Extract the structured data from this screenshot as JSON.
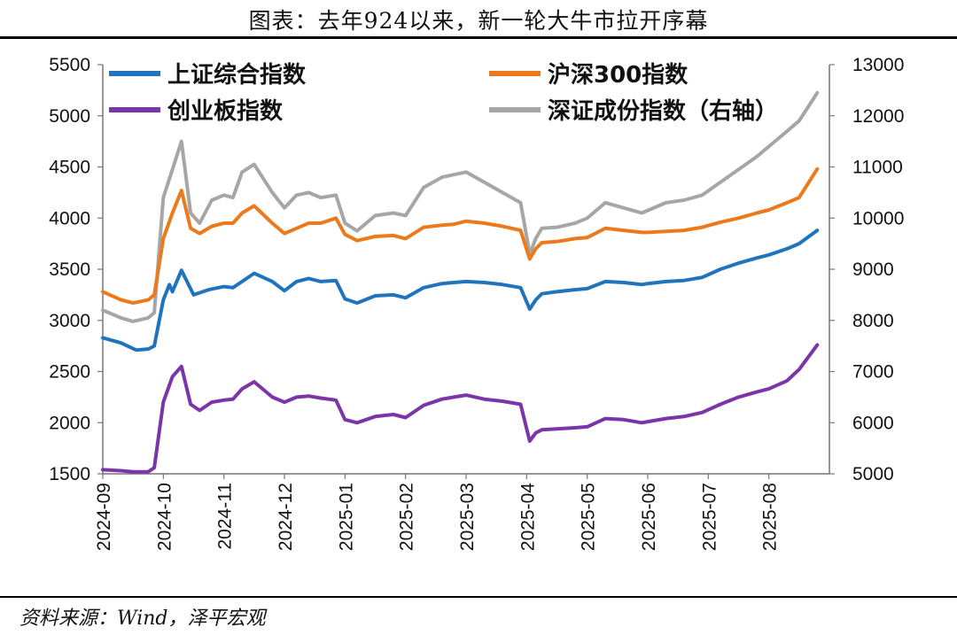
{
  "title": "图表：去年924以来，新一轮大牛市拉开序幕",
  "source": "资料来源：Wind，泽平宏观",
  "colors": {
    "shcomp": "#1f74bd",
    "csi300": "#ec7a1c",
    "chinext": "#7b35a9",
    "szcomp": "#a6a6a6"
  },
  "chart_data": {
    "type": "line",
    "x_labels": [
      "2024-09",
      "2024-10",
      "2024-11",
      "2024-12",
      "2025-01",
      "2025-02",
      "2025-03",
      "2025-04",
      "2025-05",
      "2025-06",
      "2025-07",
      "2025-08"
    ],
    "y_left": {
      "min": 1500,
      "max": 5500,
      "ticks": [
        "1500",
        "2000",
        "2500",
        "3000",
        "3500",
        "4000",
        "4500",
        "5000",
        "5500"
      ]
    },
    "y_right": {
      "min": 5000,
      "max": 13000,
      "ticks": [
        "5000",
        "6000",
        "7000",
        "8000",
        "9000",
        "10000",
        "11000",
        "12000",
        "13000"
      ]
    },
    "grid": false,
    "legend": {
      "placement": "top"
    },
    "series": [
      {
        "name": "上证综合指数",
        "axis": "left",
        "color": "#1f74bd",
        "x": [
          0,
          0.3,
          0.55,
          0.75,
          0.85,
          1.0,
          1.1,
          1.15,
          1.3,
          1.5,
          1.75,
          2.0,
          2.15,
          2.3,
          2.5,
          2.8,
          3.0,
          3.2,
          3.4,
          3.6,
          3.85,
          4.0,
          4.2,
          4.5,
          4.8,
          5.0,
          5.3,
          5.6,
          5.8,
          6.0,
          6.3,
          6.6,
          6.9,
          7.05,
          7.15,
          7.25,
          7.5,
          7.8,
          8.0,
          8.3,
          8.6,
          8.9,
          9.0,
          9.3,
          9.6,
          9.9,
          10.2,
          10.5,
          10.8,
          11.0,
          11.3,
          11.5,
          11.8
        ],
        "values": [
          2830,
          2780,
          2710,
          2720,
          2750,
          3200,
          3350,
          3280,
          3490,
          3250,
          3300,
          3330,
          3320,
          3380,
          3460,
          3380,
          3290,
          3380,
          3410,
          3380,
          3390,
          3210,
          3170,
          3240,
          3250,
          3220,
          3320,
          3360,
          3370,
          3380,
          3370,
          3350,
          3320,
          3110,
          3200,
          3260,
          3280,
          3300,
          3310,
          3380,
          3370,
          3350,
          3360,
          3380,
          3390,
          3420,
          3500,
          3560,
          3610,
          3640,
          3700,
          3750,
          3880
        ]
      },
      {
        "name": "沪深300指数",
        "axis": "left",
        "color": "#ec7a1c",
        "x": [
          0,
          0.3,
          0.5,
          0.75,
          0.85,
          1.0,
          1.15,
          1.3,
          1.45,
          1.6,
          1.8,
          2.0,
          2.15,
          2.3,
          2.5,
          2.8,
          3.0,
          3.2,
          3.4,
          3.6,
          3.85,
          4.0,
          4.2,
          4.5,
          4.8,
          5.0,
          5.3,
          5.6,
          5.8,
          6.0,
          6.3,
          6.6,
          6.9,
          7.05,
          7.15,
          7.25,
          7.5,
          7.8,
          8.0,
          8.3,
          8.6,
          8.9,
          9.0,
          9.3,
          9.6,
          9.9,
          10.2,
          10.5,
          10.8,
          11.0,
          11.3,
          11.5,
          11.8
        ],
        "values": [
          3280,
          3200,
          3170,
          3200,
          3250,
          3800,
          4050,
          4270,
          3900,
          3850,
          3920,
          3950,
          3950,
          4050,
          4120,
          3950,
          3850,
          3900,
          3950,
          3950,
          4000,
          3840,
          3780,
          3820,
          3830,
          3800,
          3910,
          3930,
          3940,
          3970,
          3950,
          3920,
          3880,
          3600,
          3700,
          3760,
          3770,
          3800,
          3810,
          3900,
          3880,
          3860,
          3860,
          3870,
          3880,
          3910,
          3960,
          4000,
          4050,
          4080,
          4150,
          4200,
          4480
        ]
      },
      {
        "name": "创业板指数",
        "axis": "left",
        "color": "#7b35a9",
        "x": [
          0,
          0.3,
          0.5,
          0.75,
          0.85,
          1.0,
          1.15,
          1.3,
          1.45,
          1.6,
          1.8,
          2.0,
          2.15,
          2.3,
          2.5,
          2.8,
          3.0,
          3.2,
          3.4,
          3.6,
          3.85,
          4.0,
          4.2,
          4.5,
          4.8,
          5.0,
          5.3,
          5.6,
          5.8,
          6.0,
          6.3,
          6.6,
          6.9,
          7.05,
          7.15,
          7.25,
          7.5,
          7.8,
          8.0,
          8.3,
          8.6,
          8.9,
          9.0,
          9.3,
          9.6,
          9.9,
          10.2,
          10.5,
          10.8,
          11.0,
          11.3,
          11.5,
          11.8
        ],
        "values": [
          1540,
          1530,
          1520,
          1520,
          1560,
          2200,
          2450,
          2550,
          2180,
          2120,
          2200,
          2220,
          2230,
          2330,
          2400,
          2250,
          2200,
          2250,
          2260,
          2240,
          2220,
          2030,
          2000,
          2060,
          2080,
          2050,
          2170,
          2230,
          2250,
          2270,
          2230,
          2210,
          2180,
          1820,
          1900,
          1930,
          1940,
          1950,
          1960,
          2040,
          2030,
          2000,
          2010,
          2040,
          2060,
          2100,
          2180,
          2250,
          2300,
          2330,
          2410,
          2520,
          2760
        ]
      },
      {
        "name": "深证成份指数（右轴）",
        "axis": "right",
        "color": "#a6a6a6",
        "x": [
          0,
          0.3,
          0.5,
          0.75,
          0.85,
          1.0,
          1.15,
          1.3,
          1.45,
          1.6,
          1.8,
          2.0,
          2.15,
          2.3,
          2.5,
          2.8,
          3.0,
          3.2,
          3.4,
          3.6,
          3.85,
          4.0,
          4.2,
          4.5,
          4.8,
          5.0,
          5.3,
          5.6,
          5.8,
          6.0,
          6.3,
          6.6,
          6.9,
          7.05,
          7.15,
          7.25,
          7.5,
          7.8,
          8.0,
          8.3,
          8.6,
          8.9,
          9.0,
          9.3,
          9.6,
          9.9,
          10.2,
          10.5,
          10.8,
          11.0,
          11.3,
          11.5,
          11.8
        ],
        "values": [
          8200,
          8050,
          7980,
          8050,
          8150,
          10400,
          10950,
          11500,
          10100,
          9900,
          10350,
          10450,
          10400,
          10900,
          11050,
          10500,
          10200,
          10450,
          10500,
          10400,
          10450,
          9900,
          9750,
          10050,
          10100,
          10050,
          10600,
          10800,
          10850,
          10900,
          10700,
          10500,
          10300,
          9300,
          9600,
          9800,
          9820,
          9900,
          10000,
          10300,
          10200,
          10100,
          10150,
          10300,
          10350,
          10450,
          10700,
          10950,
          11200,
          11400,
          11700,
          11900,
          12450
        ]
      }
    ]
  }
}
